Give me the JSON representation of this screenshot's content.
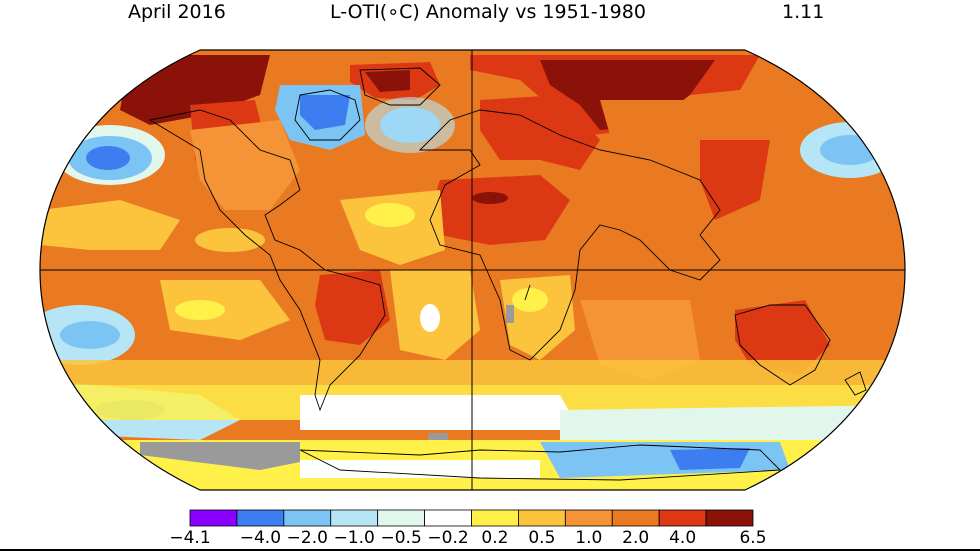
{
  "header": {
    "date": "April 2016",
    "title": "L-OTI(∘C) Anomaly vs 1951-1980",
    "global_mean": "1.11"
  },
  "legend": {
    "ticks": [
      "−4.1",
      "−4.0",
      "−2.0",
      "−1.0",
      "−0.5",
      "−0.2",
      "0.2",
      "0.5",
      "1.0",
      "2.0",
      "4.0",
      "6.5"
    ],
    "bins": [
      {
        "from": "-4.1",
        "to": "-4.0",
        "color": "#8b00ff"
      },
      {
        "from": "-4.0",
        "to": "-2.0",
        "color": "#3c7df0"
      },
      {
        "from": "-2.0",
        "to": "-1.0",
        "color": "#7cc4f4"
      },
      {
        "from": "-1.0",
        "to": "-0.5",
        "color": "#b6e6f6"
      },
      {
        "from": "-0.5",
        "to": "-0.2",
        "color": "#e1f7ec"
      },
      {
        "from": "-0.2",
        "to": "0.2",
        "color": "#ffffff"
      },
      {
        "from": "0.2",
        "to": "0.5",
        "color": "#fff04a"
      },
      {
        "from": "0.5",
        "to": "1.0",
        "color": "#fcc43c"
      },
      {
        "from": "1.0",
        "to": "2.0",
        "color": "#f49436"
      },
      {
        "from": "2.0",
        "to": "4.0",
        "color": "#e97a22"
      },
      {
        "from": "4.0",
        "to": "6.5",
        "color": "#dc3814"
      },
      {
        "from": "6.5",
        "to": "",
        "color": "#8a1208"
      }
    ],
    "missing_color": "#9a9a9a"
  }
}
